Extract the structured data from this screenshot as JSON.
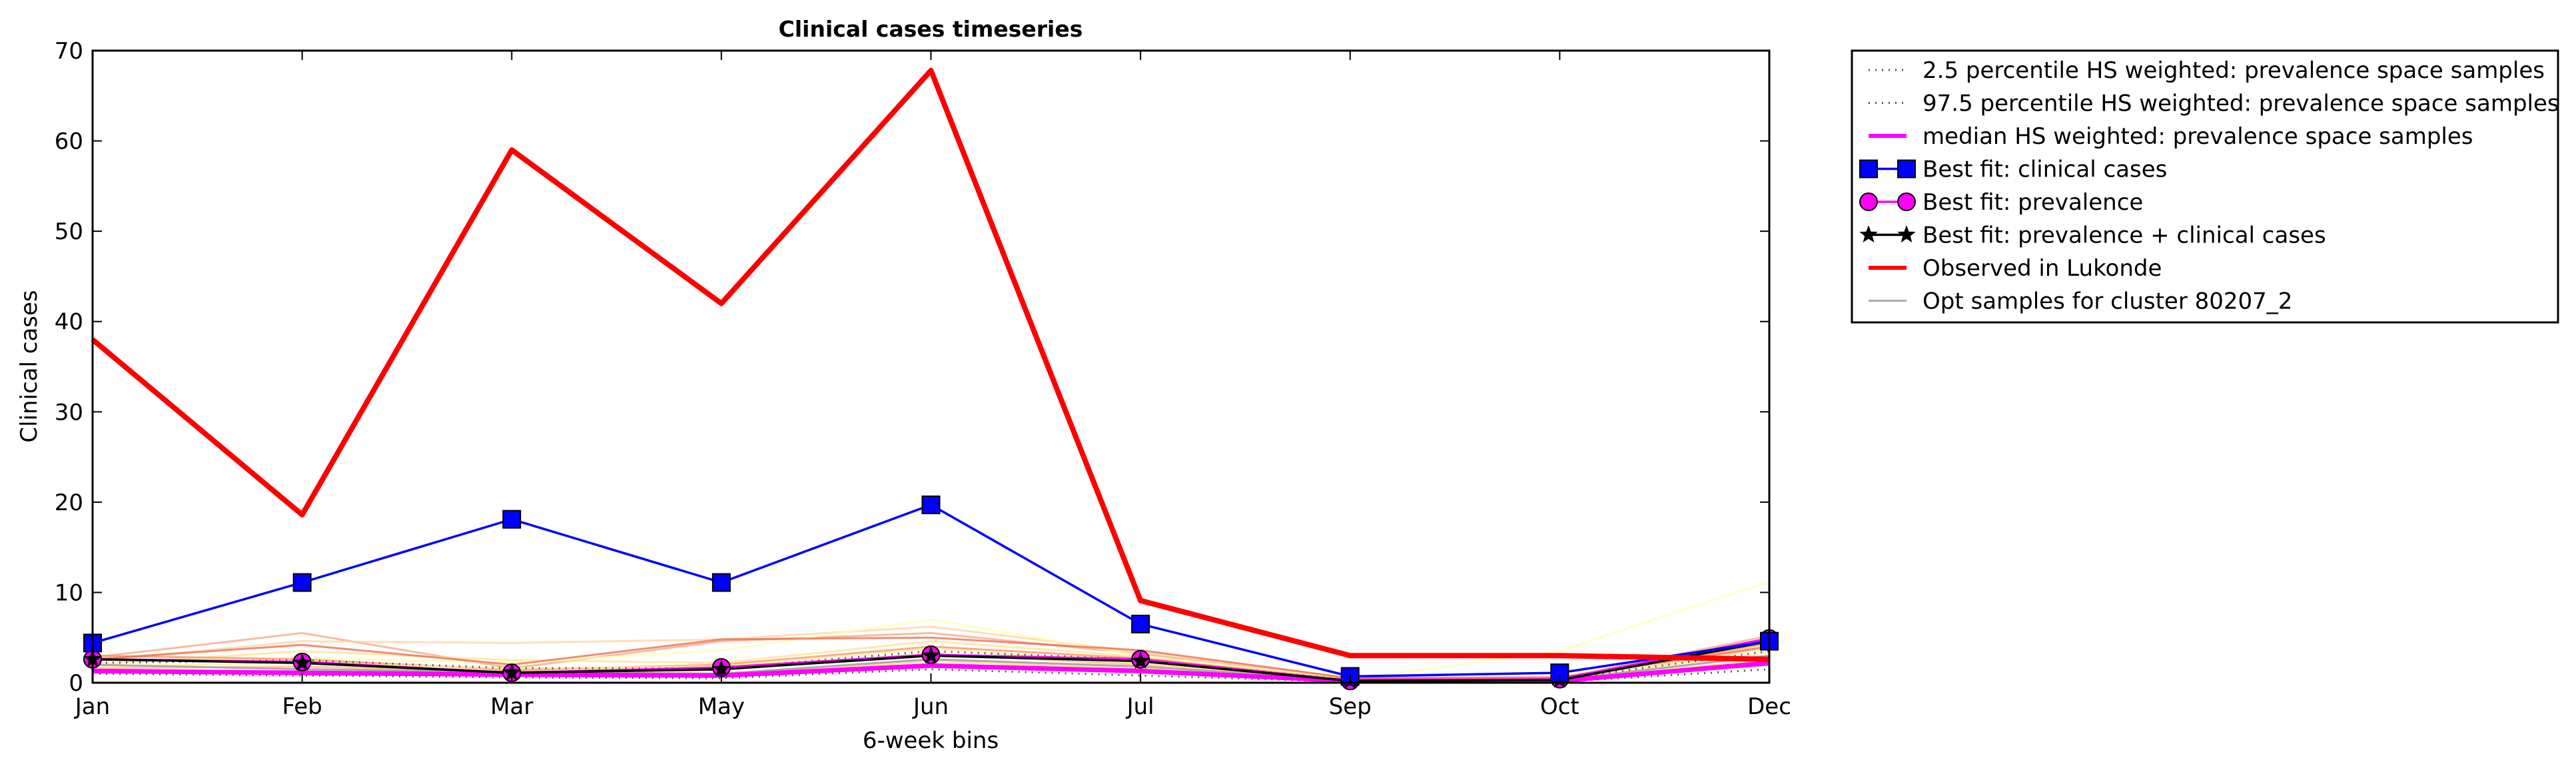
{
  "chart_data": {
    "type": "line",
    "title": "Clinical cases timeseries",
    "xlabel": "6-week bins",
    "ylabel": "Clinical cases",
    "categories": [
      "Jan",
      "Feb",
      "Mar",
      "May",
      "Jun",
      "Jul",
      "Sep",
      "Oct",
      "Dec"
    ],
    "ylim": [
      0,
      70
    ],
    "yticks": [
      0,
      10,
      20,
      30,
      40,
      50,
      60,
      70
    ],
    "grid": false,
    "legend_position": "outside-top-right",
    "series": [
      {
        "name": "2.5 percentile HS weighted: prevalence space samples",
        "style": "dotted",
        "color": "#555555",
        "values": [
          1.0,
          0.8,
          0.6,
          0.5,
          1.5,
          0.8,
          0.1,
          0.1,
          1.5
        ]
      },
      {
        "name": "97.5 percentile HS weighted: prevalence space samples",
        "style": "dotted",
        "color": "#555555",
        "values": [
          2.2,
          2.5,
          1.6,
          1.6,
          3.5,
          2.6,
          0.3,
          0.4,
          3.5
        ]
      },
      {
        "name": "median HS weighted: prevalence space samples",
        "style": "solid",
        "color": "#ff00ff",
        "values": [
          1.3,
          1.1,
          0.9,
          0.8,
          1.9,
          1.3,
          0.2,
          0.2,
          2.2
        ]
      },
      {
        "name": "Best fit: clinical cases",
        "style": "solid",
        "color": "#0000ff",
        "marker": "square",
        "values": [
          4.4,
          11.1,
          18.1,
          11.1,
          19.7,
          6.5,
          0.7,
          1.1,
          4.6
        ]
      },
      {
        "name": "Best fit: prevalence",
        "style": "solid",
        "color": "#ff00ff",
        "marker": "circle",
        "values": [
          2.6,
          2.3,
          1.1,
          1.7,
          3.1,
          2.6,
          0.2,
          0.4,
          4.9
        ]
      },
      {
        "name": "Best fit: prevalence + clinical cases",
        "style": "solid",
        "color": "#000000",
        "marker": "star",
        "values": [
          2.6,
          2.2,
          1.1,
          1.5,
          3.0,
          2.4,
          0.2,
          0.3,
          4.6
        ]
      },
      {
        "name": "Observed in Lukonde",
        "style": "solid",
        "color": "#ff0000",
        "values": [
          38,
          18.6,
          59,
          42,
          67.8,
          9.1,
          3,
          3,
          2.6
        ]
      },
      {
        "name": "Opt samples for cluster 80207_2",
        "style": "solid",
        "color": "#aaaaaa",
        "values": [
          2.0,
          1.5,
          1.2,
          1.0,
          2.6,
          1.8,
          0.3,
          0.3,
          3.0
        ]
      }
    ],
    "sample_colors": [
      "#f4a582",
      "#fdd49e",
      "#fee391",
      "#fdbb84",
      "#ffffb2",
      "#fc8d59",
      "#fed976",
      "#ef6548",
      "#ffeda0",
      "#e34a33"
    ],
    "samples": [
      [
        2.8,
        5.5,
        1.6,
        4.6,
        5.5,
        3.2,
        0.4,
        0.5,
        5.2
      ],
      [
        2.4,
        4.6,
        4.4,
        4.8,
        6.2,
        3.4,
        0.5,
        0.6,
        4.2
      ],
      [
        2.0,
        3.5,
        2.5,
        2.2,
        4.6,
        2.9,
        0.3,
        0.4,
        3.8
      ],
      [
        1.6,
        1.8,
        1.2,
        1.4,
        3.2,
        2.0,
        0.2,
        0.3,
        3.0
      ],
      [
        2.2,
        2.8,
        2.2,
        3.6,
        7.0,
        3.0,
        0.4,
        3.5,
        11.2
      ],
      [
        3.0,
        2.6,
        1.4,
        2.0,
        4.0,
        2.7,
        0.3,
        0.4,
        4.4
      ],
      [
        1.4,
        1.2,
        1.0,
        0.9,
        2.4,
        1.6,
        0.2,
        0.2,
        2.6
      ],
      [
        2.6,
        4.2,
        2.0,
        4.8,
        5.0,
        3.6,
        0.5,
        0.6,
        4.0
      ],
      [
        1.8,
        2.2,
        1.6,
        1.8,
        3.8,
        2.2,
        0.3,
        0.3,
        3.4
      ],
      [
        1.2,
        1.0,
        0.8,
        0.7,
        1.8,
        1.2,
        0.1,
        0.2,
        2.0
      ]
    ]
  }
}
